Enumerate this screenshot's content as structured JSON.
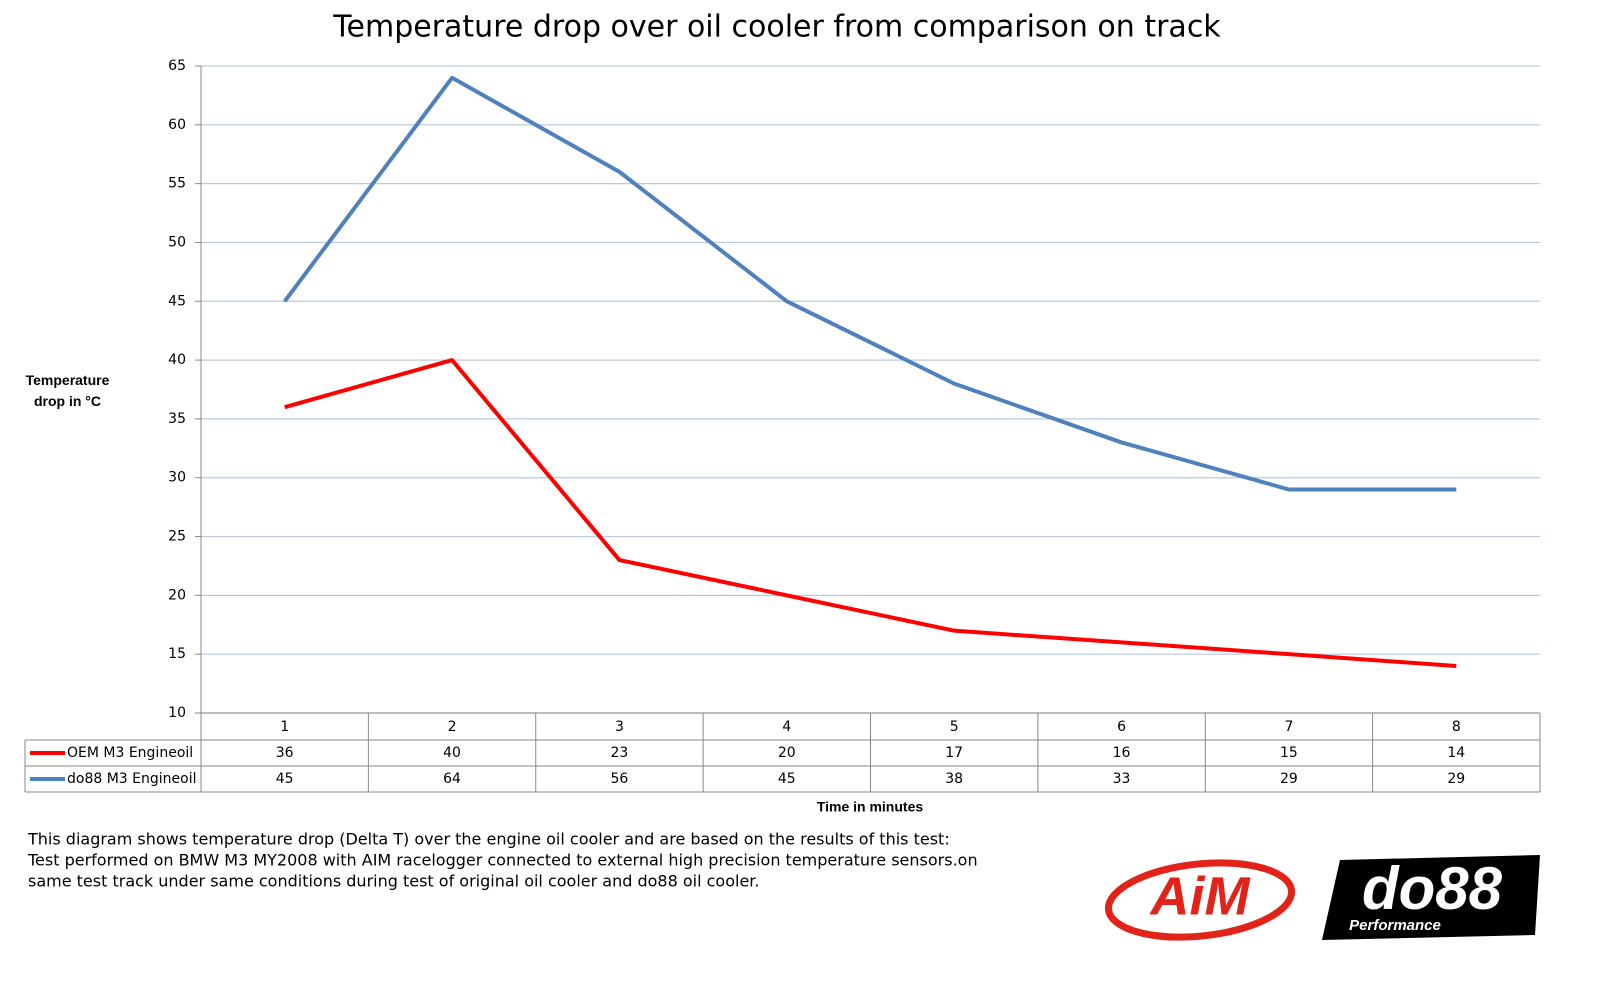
{
  "chart_data": {
    "type": "line",
    "title": "Temperature drop over oil cooler from comparison on track",
    "y_label": "Temperature drop in °C",
    "x_label": "Time in minutes",
    "categories": [
      "1",
      "2",
      "3",
      "4",
      "5",
      "6",
      "7",
      "8"
    ],
    "series": [
      {
        "name": "OEM M3 Engineoil",
        "color": "#ff0000",
        "values": [
          36,
          40,
          23,
          20,
          17,
          16,
          15,
          14
        ]
      },
      {
        "name": "do88 M3 Engineoil",
        "color": "#4f81bd",
        "values": [
          45,
          64,
          56,
          45,
          38,
          33,
          29,
          29
        ]
      }
    ],
    "ylim": [
      10,
      65
    ],
    "yticks": [
      10,
      15,
      20,
      25,
      30,
      35,
      40,
      45,
      50,
      55,
      60,
      65
    ],
    "grid": true,
    "notes": [
      "This diagram shows temperature drop (Delta T) over the engine oil cooler and are based on the results of this test:",
      "Test performed on BMW M3 MY2008 with AIM racelogger connected to external high precision temperature sensors.on",
      "same test track under same conditions during test of original oil cooler and do88 oil cooler."
    ],
    "logos": [
      "AiM",
      "do88",
      "Performance"
    ]
  }
}
